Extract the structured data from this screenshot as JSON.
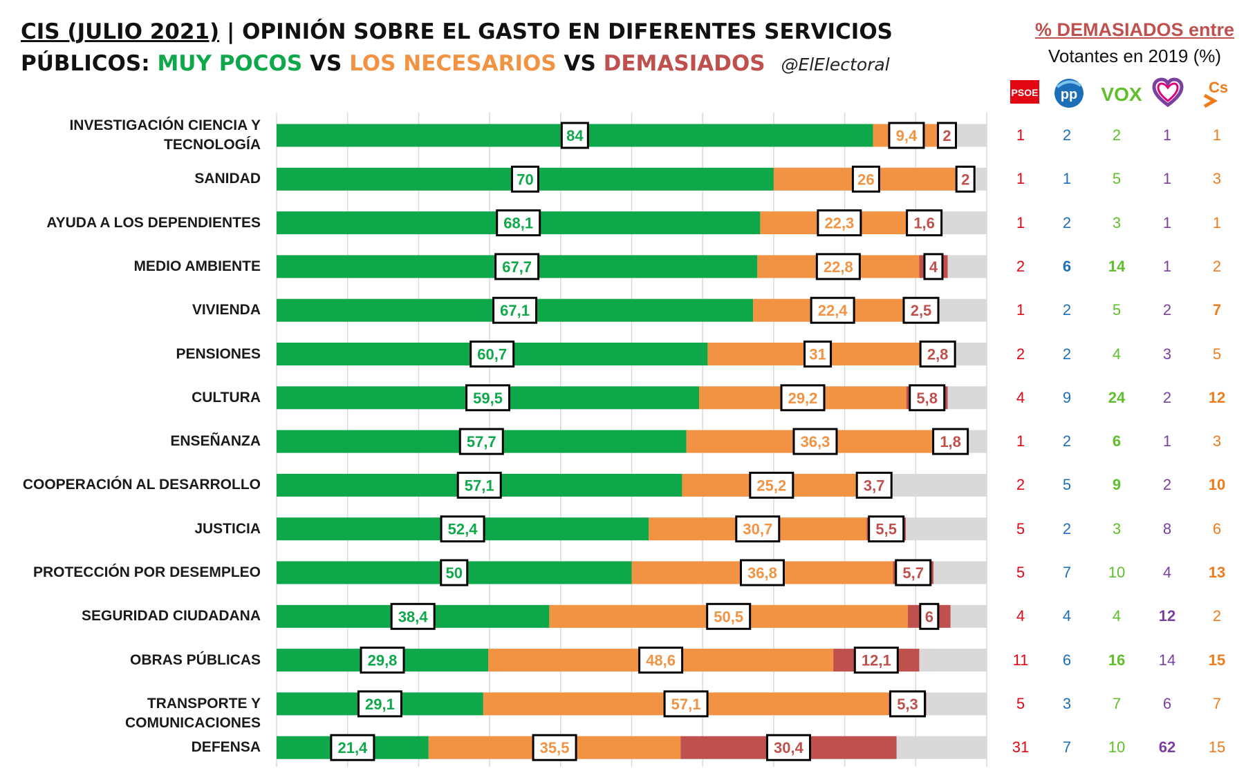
{
  "title": {
    "date": "CIS (JULIO 2021)",
    "line1_rest": "| OPINIÓN SOBRE EL GASTO EN DIFERENTES SERVICIOS",
    "line2_prefix": "PÚBLICOS:",
    "muy_pocos": "MUY POCOS",
    "vs1": "VS",
    "los_necesarios": "LOS NECESARIOS",
    "vs2": "VS",
    "demasiados": "DEMASIADOS",
    "handle": "@ElElectoral"
  },
  "side_panel": {
    "title": "% DEMASIADOS entre",
    "subtitle": "Votantes en 2019 (%)",
    "parties": [
      {
        "name": "PSOE",
        "icon": "psoe-logo-icon",
        "color": "#e30613"
      },
      {
        "name": "PP",
        "icon": "pp-logo-icon",
        "color": "#1d6fb8"
      },
      {
        "name": "VOX",
        "icon": "vox-logo-icon",
        "color": "#5fbf2a"
      },
      {
        "name": "Podemos",
        "icon": "podemos-heart-logo-icon",
        "color": "#7b3fa0"
      },
      {
        "name": "Cs",
        "icon": "cs-logo-icon",
        "color": "#f07b1a"
      }
    ]
  },
  "colors": {
    "muy_pocos": "#0ea84b",
    "necesarios": "#f29344",
    "demasiados": "#c0504d",
    "remainder": "#d9d9d9",
    "grid": "#d9d9d9"
  },
  "chart_data": {
    "type": "bar",
    "orientation": "horizontal",
    "stacked": true,
    "xlim": [
      0,
      100
    ],
    "grid": true,
    "categories": [
      "INVESTIGACIÓN CIENCIA Y TECNOLOGÍA",
      "SANIDAD",
      "AYUDA A LOS DEPENDIENTES",
      "MEDIO AMBIENTE",
      "VIVIENDA",
      "PENSIONES",
      "CULTURA",
      "ENSEÑANZA",
      "COOPERACIÓN AL DESARROLLO",
      "JUSTICIA",
      "PROTECCIÓN POR DESEMPLEO",
      "SEGURIDAD CIUDADANA",
      "OBRAS PÚBLICAS",
      "TRANSPORTE Y COMUNICACIONES",
      "DEFENSA"
    ],
    "series": [
      {
        "name": "MUY POCOS",
        "values": [
          84,
          70,
          68.1,
          67.7,
          67.1,
          60.7,
          59.5,
          57.7,
          57.1,
          52.4,
          50,
          38.4,
          29.8,
          29.1,
          21.4
        ],
        "labels": [
          "84",
          "70",
          "68,1",
          "67,7",
          "67,1",
          "60,7",
          "59,5",
          "57,7",
          "57,1",
          "52,4",
          "50",
          "38,4",
          "29,8",
          "29,1",
          "21,4"
        ]
      },
      {
        "name": "LOS NECESARIOS",
        "values": [
          9.4,
          26,
          22.3,
          22.8,
          22.4,
          31,
          29.2,
          36.3,
          25.2,
          30.7,
          36.8,
          50.5,
          48.6,
          57.1,
          35.5
        ],
        "labels": [
          "9,4",
          "26",
          "22,3",
          "22,8",
          "22,4",
          "31",
          "29,2",
          "36,3",
          "25,2",
          "30,7",
          "36,8",
          "50,5",
          "48,6",
          "57,1",
          "35,5"
        ]
      },
      {
        "name": "DEMASIADOS",
        "values": [
          2,
          2,
          1.6,
          4,
          2.5,
          2.8,
          5.8,
          1.8,
          3.7,
          5.5,
          5.7,
          6,
          12.1,
          5.3,
          30.4
        ],
        "labels": [
          "2",
          "2",
          "1,6",
          "4",
          "2,5",
          "2,8",
          "5,8",
          "1,8",
          "3,7",
          "5,5",
          "5,7",
          "6",
          "12,1",
          "5,3",
          "30,4"
        ]
      }
    ]
  },
  "party_values": [
    {
      "values": [
        "1",
        "2",
        "2",
        "1",
        "1"
      ],
      "bold": [
        false,
        false,
        false,
        false,
        false
      ]
    },
    {
      "values": [
        "1",
        "1",
        "5",
        "1",
        "3"
      ],
      "bold": [
        false,
        false,
        false,
        false,
        false
      ]
    },
    {
      "values": [
        "1",
        "2",
        "3",
        "1",
        "1"
      ],
      "bold": [
        false,
        false,
        false,
        false,
        false
      ]
    },
    {
      "values": [
        "2",
        "6",
        "14",
        "1",
        "2"
      ],
      "bold": [
        false,
        true,
        true,
        false,
        false
      ]
    },
    {
      "values": [
        "1",
        "2",
        "5",
        "2",
        "7"
      ],
      "bold": [
        false,
        false,
        false,
        false,
        true
      ]
    },
    {
      "values": [
        "2",
        "2",
        "4",
        "3",
        "5"
      ],
      "bold": [
        false,
        false,
        false,
        false,
        false
      ]
    },
    {
      "values": [
        "4",
        "9",
        "24",
        "2",
        "12"
      ],
      "bold": [
        false,
        false,
        true,
        false,
        true
      ]
    },
    {
      "values": [
        "1",
        "2",
        "6",
        "1",
        "3"
      ],
      "bold": [
        false,
        false,
        true,
        false,
        false
      ]
    },
    {
      "values": [
        "2",
        "5",
        "9",
        "2",
        "10"
      ],
      "bold": [
        false,
        false,
        true,
        false,
        true
      ]
    },
    {
      "values": [
        "5",
        "2",
        "3",
        "8",
        "6"
      ],
      "bold": [
        false,
        false,
        false,
        false,
        false
      ]
    },
    {
      "values": [
        "5",
        "7",
        "10",
        "4",
        "13"
      ],
      "bold": [
        false,
        false,
        false,
        false,
        true
      ]
    },
    {
      "values": [
        "4",
        "4",
        "4",
        "12",
        "2"
      ],
      "bold": [
        false,
        false,
        false,
        true,
        false
      ]
    },
    {
      "values": [
        "11",
        "6",
        "16",
        "14",
        "15"
      ],
      "bold": [
        false,
        false,
        true,
        false,
        true
      ]
    },
    {
      "values": [
        "5",
        "3",
        "7",
        "6",
        "7"
      ],
      "bold": [
        false,
        false,
        false,
        false,
        false
      ]
    },
    {
      "values": [
        "31",
        "7",
        "10",
        "62",
        "15"
      ],
      "bold": [
        false,
        false,
        false,
        true,
        false
      ]
    }
  ]
}
